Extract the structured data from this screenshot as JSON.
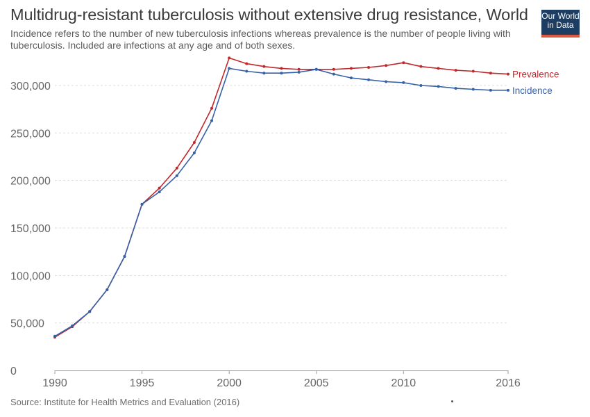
{
  "header": {
    "title": "Multidrug-resistant tuberculosis without extensive drug resistance, World",
    "subtitle": "Incidence refers to the number of new tuberculosis infections whereas prevalence is the number of people living with tuberculosis. Included are infections at any age and of both sexes."
  },
  "logo": {
    "line1": "Our World",
    "line2": "in Data"
  },
  "footer": {
    "source": "Source: Institute for Health Metrics and Evaluation (2016)"
  },
  "colors": {
    "prevalence": "#c0282b",
    "incidence": "#3461a8",
    "grid": "#dddddd",
    "axis": "#666666"
  },
  "chart_data": {
    "type": "line",
    "title": "Multidrug-resistant tuberculosis without extensive drug resistance, World",
    "xlabel": "",
    "ylabel": "",
    "xlim": [
      1990,
      2016
    ],
    "ylim": [
      0,
      330000
    ],
    "grid": true,
    "legend": "right-end labels",
    "x": [
      1990,
      1991,
      1992,
      1993,
      1994,
      1995,
      1996,
      1997,
      1998,
      1999,
      2000,
      2001,
      2002,
      2003,
      2004,
      2005,
      2006,
      2007,
      2008,
      2009,
      2010,
      2011,
      2012,
      2013,
      2014,
      2015,
      2016
    ],
    "x_ticks": [
      "1990",
      "1995",
      "2000",
      "2005",
      "2010",
      "2016"
    ],
    "x_tick_values": [
      1990,
      1995,
      2000,
      2005,
      2010,
      2016
    ],
    "y_ticks": [
      "0",
      "50,000",
      "100,000",
      "150,000",
      "200,000",
      "250,000",
      "300,000"
    ],
    "y_tick_values": [
      0,
      50000,
      100000,
      150000,
      200000,
      250000,
      300000
    ],
    "series": [
      {
        "name": "Prevalence",
        "color": "#c0282b",
        "values": [
          35000,
          46000,
          62000,
          85000,
          120000,
          175000,
          192000,
          213000,
          240000,
          276000,
          329000,
          323000,
          320000,
          318000,
          317000,
          317000,
          317000,
          318000,
          319000,
          321000,
          324000,
          320000,
          318000,
          316000,
          315000,
          313000,
          312000
        ]
      },
      {
        "name": "Incidence",
        "color": "#3461a8",
        "values": [
          36000,
          47000,
          62000,
          85000,
          120000,
          175000,
          188000,
          205000,
          229000,
          263000,
          318000,
          315000,
          313000,
          313000,
          314000,
          317000,
          312000,
          308000,
          306000,
          304000,
          303000,
          300000,
          299000,
          297000,
          296000,
          295000,
          295000
        ]
      }
    ]
  }
}
